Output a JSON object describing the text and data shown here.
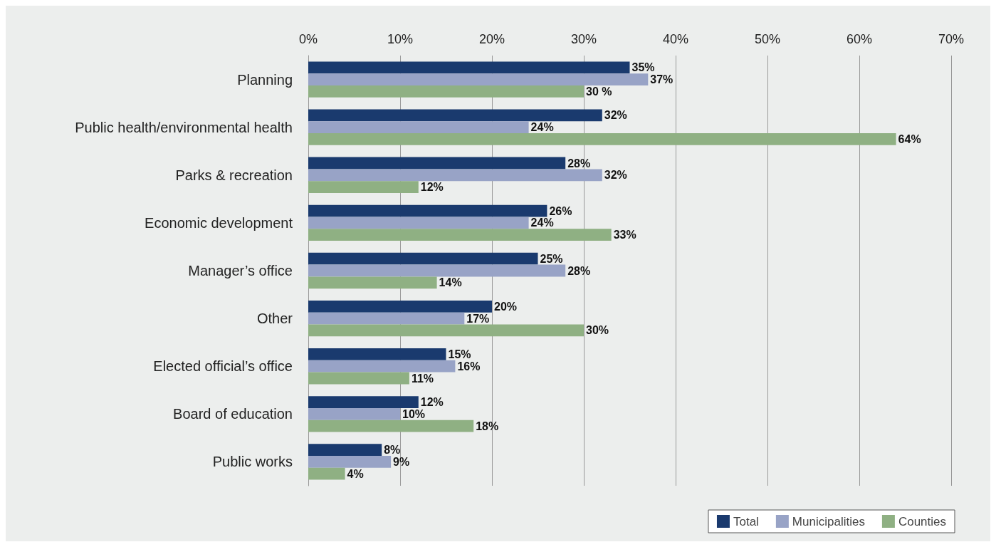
{
  "chart_data": {
    "type": "bar",
    "orientation": "horizontal",
    "categories": [
      "Planning",
      "Public health/environmental health",
      "Parks & recreation",
      "Economic development",
      "Manager’s office",
      "Other",
      "Elected official’s office",
      "Board of education",
      "Public works"
    ],
    "series": [
      {
        "name": "Total",
        "color": "#1a3a6e",
        "values": [
          35,
          32,
          28,
          26,
          25,
          20,
          15,
          12,
          8
        ],
        "value_labels": [
          "35%",
          "32%",
          "28%",
          "26%",
          "25%",
          "20%",
          "15%",
          "12%",
          "8%"
        ]
      },
      {
        "name": "Municipalities",
        "color": "#98a3c6",
        "values": [
          37,
          24,
          32,
          24,
          28,
          17,
          16,
          10,
          9
        ],
        "value_labels": [
          "37%",
          "24%",
          "32%",
          "24%",
          "28%",
          "17%",
          "16%",
          "10%",
          "9%"
        ]
      },
      {
        "name": "Counties",
        "color": "#8fb083",
        "values": [
          30,
          64,
          12,
          33,
          14,
          30,
          11,
          18,
          4
        ],
        "value_labels": [
          "30 %",
          "64%",
          "12%",
          "33%",
          "14%",
          "30%",
          "11%",
          "18%",
          "4%"
        ]
      }
    ],
    "xlim": [
      0,
      70
    ],
    "xticks": [
      {
        "value": 0,
        "label": "0%"
      },
      {
        "value": 10,
        "label": "10%"
      },
      {
        "value": 20,
        "label": "20%"
      },
      {
        "value": 30,
        "label": "30%"
      },
      {
        "value": 40,
        "label": "40%"
      },
      {
        "value": 50,
        "label": "50%"
      },
      {
        "value": 60,
        "label": "60%"
      },
      {
        "value": 70,
        "label": "70%"
      }
    ],
    "grid": "x",
    "legend": "bottom right"
  }
}
